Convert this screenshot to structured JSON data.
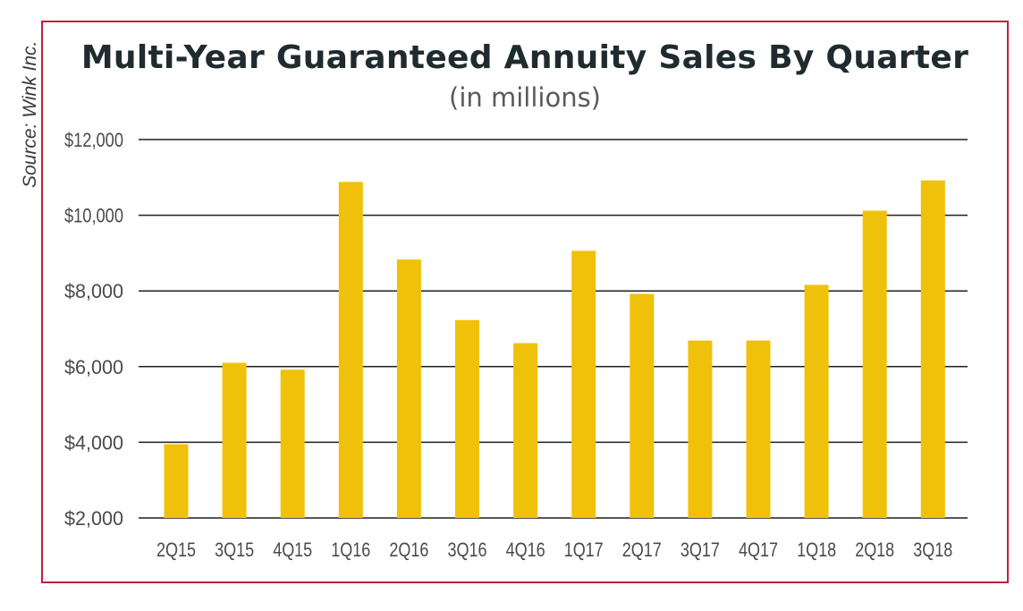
{
  "source_note": "Source: Wink Inc.",
  "chart_data": {
    "type": "bar",
    "title": "Multi-Year Guaranteed Annuity Sales By Quarter",
    "subtitle": "(in millions)",
    "xlabel": "",
    "ylabel": "",
    "categories": [
      "2Q15",
      "3Q15",
      "4Q15",
      "1Q16",
      "2Q16",
      "3Q16",
      "4Q16",
      "1Q17",
      "2Q17",
      "3Q17",
      "4Q17",
      "1Q18",
      "2Q18",
      "3Q18"
    ],
    "values": [
      3950,
      6100,
      5920,
      10880,
      8830,
      7230,
      6620,
      9060,
      7920,
      6690,
      6690,
      8160,
      10120,
      10920
    ],
    "ylim": [
      2000,
      12000
    ],
    "yticks": [
      2000,
      4000,
      6000,
      8000,
      10000,
      12000
    ],
    "ytick_labels": [
      "$2,000",
      "$4,000",
      "$6,000",
      "$8,000",
      "$10,000",
      "$12,000"
    ],
    "grid": true,
    "legend": "none",
    "bar_color": "#f0c10a",
    "grid_color": "#1f1f1f",
    "frame_color": "#c41e3a"
  }
}
